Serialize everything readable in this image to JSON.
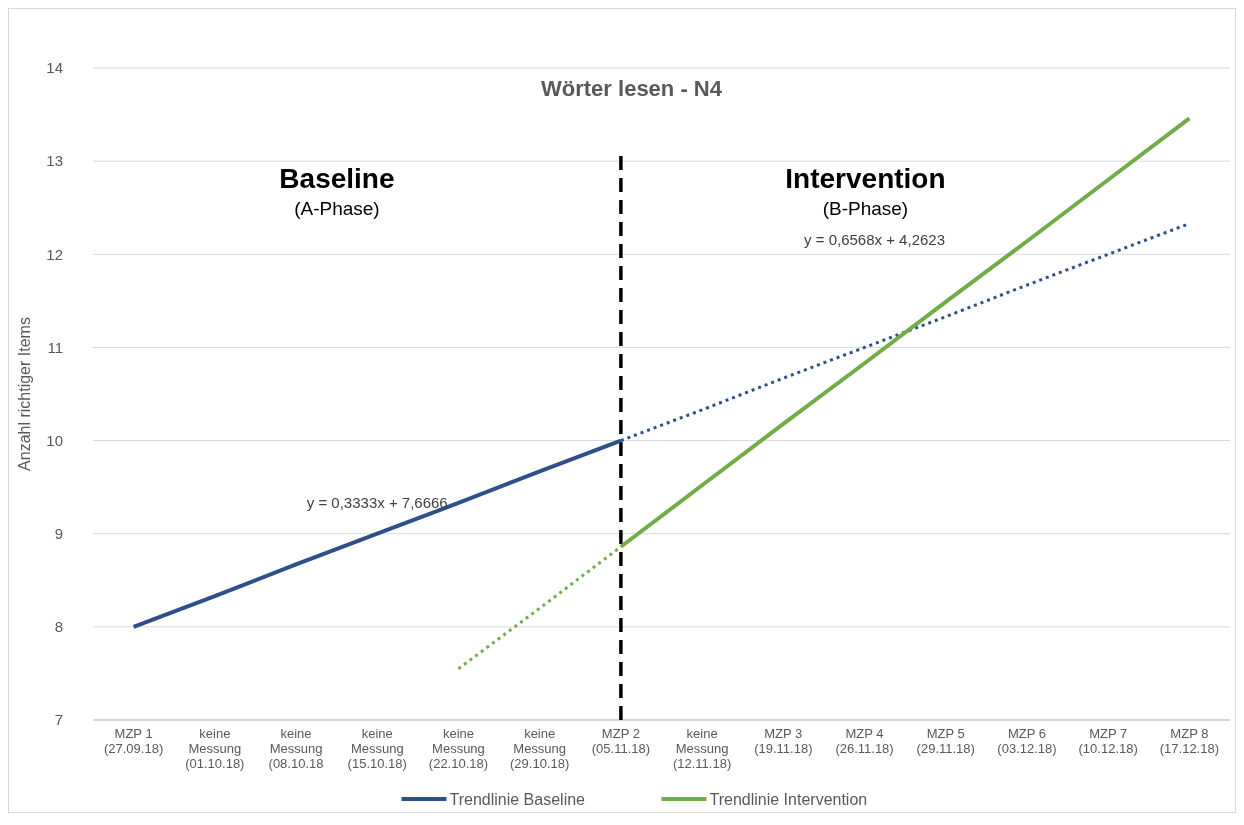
{
  "chart_data": {
    "type": "line",
    "title": "Wörter lesen - N4",
    "ylabel": "Anzahl richtiger Items",
    "categories": [
      "MZP 1\n(27.09.18)",
      "keine\nMessung\n(01.10.18)",
      "keine\nMessung\n(08.10.18",
      "keine\nMessung\n(15.10.18)",
      "keine\nMessung\n(22.10.18)",
      "keine\nMessung\n(29.10.18)",
      "MZP 2\n(05.11.18)",
      "keine\nMessung\n(12.11.18)",
      "MZP 3\n(19.11.18)",
      "MZP 4\n(26.11.18)",
      "MZP 5\n(29.11.18)",
      "MZP 6\n(03.12.18)",
      "MZP 7\n(10.12.18)",
      "MZP 8\n(17.12.18)"
    ],
    "ylim": [
      7,
      14
    ],
    "yticks": [
      7,
      8,
      9,
      10,
      11,
      12,
      13,
      14
    ],
    "grid": "y",
    "legend": "bottom",
    "series": [
      {
        "name": "Trendlinie Baseline",
        "color": "#2f4f8a",
        "values": [
          8,
          8.33,
          8.67,
          9,
          9.33,
          9.67,
          10,
          null,
          null,
          null,
          null,
          null,
          null,
          null
        ],
        "line_style": "solid"
      },
      {
        "color": "#2f4f8a",
        "values": [
          null,
          null,
          null,
          null,
          null,
          null,
          10,
          10.33,
          10.67,
          11,
          11.33,
          11.67,
          12,
          12.33
        ],
        "line_style": "dotted"
      },
      {
        "name": "Trendlinie Intervention",
        "color": "#70ad47",
        "values": [
          null,
          null,
          null,
          null,
          null,
          null,
          8.86,
          9.52,
          10.18,
          10.83,
          11.49,
          12.14,
          12.8,
          13.46
        ],
        "line_style": "solid"
      },
      {
        "color": "#70ad47",
        "values": [
          null,
          null,
          null,
          null,
          7.55,
          8.2,
          8.86,
          null,
          null,
          null,
          null,
          null,
          null,
          null
        ],
        "line_style": "dotted"
      }
    ],
    "ref_lines": [
      {
        "axis": "x",
        "value": "MZP 2\n(05.11.18)",
        "color": "#000000",
        "line_style": "dashed"
      }
    ],
    "annotations": [
      "Baseline",
      "(A-Phase)",
      "Intervention",
      "(B-Phase)",
      "y = 0,3333x + 7,6666",
      "y = 0,6568x + 4,2623"
    ]
  }
}
